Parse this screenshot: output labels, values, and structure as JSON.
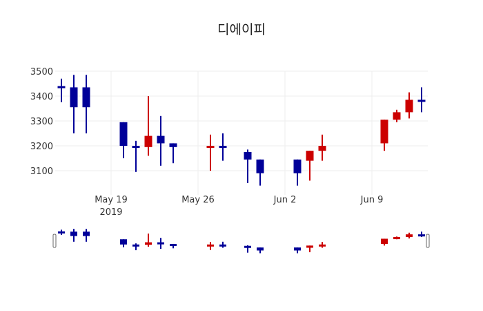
{
  "chart_data": {
    "type": "candlestick",
    "title": "디에이피",
    "xlabel": "",
    "ylabel": "",
    "ylim": [
      3020,
      3500
    ],
    "y_ticks": [
      3100,
      3200,
      3300,
      3400,
      3500
    ],
    "x_ticks": [
      {
        "label": "May 19",
        "sub": "2019",
        "day": 4
      },
      {
        "label": "May 26",
        "sub": "",
        "day": 11
      },
      {
        "label": "Jun 2",
        "sub": "",
        "day": 18
      },
      {
        "label": "Jun 9",
        "sub": "",
        "day": 25
      }
    ],
    "grid": true,
    "increasing_color": "#cc0000",
    "decreasing_color": "#000099",
    "rangeslider": true,
    "candles": [
      {
        "date": "2019-05-15",
        "day": 0,
        "open": 3440,
        "high": 3470,
        "low": 3375,
        "close": 3435
      },
      {
        "date": "2019-05-16",
        "day": 1,
        "open": 3435,
        "high": 3485,
        "low": 3250,
        "close": 3355
      },
      {
        "date": "2019-05-17",
        "day": 2,
        "open": 3435,
        "high": 3485,
        "low": 3250,
        "close": 3355
      },
      {
        "date": "2019-05-20",
        "day": 5,
        "open": 3295,
        "high": 3295,
        "low": 3150,
        "close": 3200
      },
      {
        "date": "2019-05-21",
        "day": 6,
        "open": 3200,
        "high": 3220,
        "low": 3095,
        "close": 3195
      },
      {
        "date": "2019-05-22",
        "day": 7,
        "open": 3195,
        "high": 3400,
        "low": 3160,
        "close": 3240
      },
      {
        "date": "2019-05-23",
        "day": 8,
        "open": 3240,
        "high": 3320,
        "low": 3120,
        "close": 3210
      },
      {
        "date": "2019-05-24",
        "day": 9,
        "open": 3210,
        "high": 3210,
        "low": 3130,
        "close": 3195
      },
      {
        "date": "2019-05-27",
        "day": 12,
        "open": 3195,
        "high": 3245,
        "low": 3100,
        "close": 3200
      },
      {
        "date": "2019-05-28",
        "day": 13,
        "open": 3200,
        "high": 3250,
        "low": 3140,
        "close": 3195
      },
      {
        "date": "2019-05-30",
        "day": 15,
        "open": 3175,
        "high": 3185,
        "low": 3050,
        "close": 3145
      },
      {
        "date": "2019-05-31",
        "day": 16,
        "open": 3145,
        "high": 3145,
        "low": 3040,
        "close": 3090
      },
      {
        "date": "2019-06-03",
        "day": 19,
        "open": 3145,
        "high": 3145,
        "low": 3040,
        "close": 3090
      },
      {
        "date": "2019-06-04",
        "day": 20,
        "open": 3140,
        "high": 3180,
        "low": 3060,
        "close": 3180
      },
      {
        "date": "2019-06-05",
        "day": 21,
        "open": 3180,
        "high": 3245,
        "low": 3140,
        "close": 3200
      },
      {
        "date": "2019-06-10",
        "day": 26,
        "open": 3210,
        "high": 3305,
        "low": 3180,
        "close": 3305
      },
      {
        "date": "2019-06-11",
        "day": 27,
        "open": 3305,
        "high": 3345,
        "low": 3295,
        "close": 3335
      },
      {
        "date": "2019-06-12",
        "day": 28,
        "open": 3335,
        "high": 3415,
        "low": 3310,
        "close": 3385
      },
      {
        "date": "2019-06-13",
        "day": 29,
        "open": 3385,
        "high": 3435,
        "low": 3335,
        "close": 3380
      }
    ]
  }
}
